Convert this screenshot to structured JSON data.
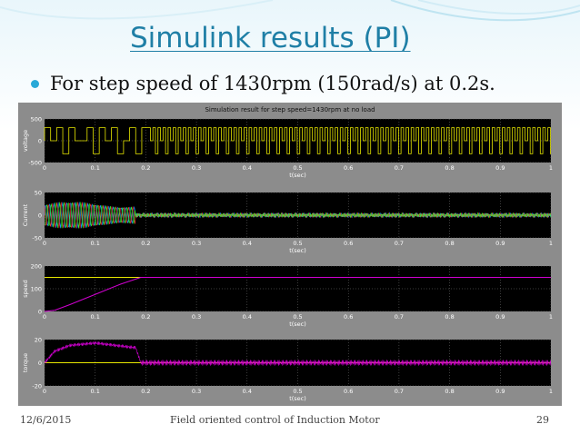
{
  "slide": {
    "title": "Simulink results (PI)",
    "bullet": "For step speed of 1430rpm (150rad/s) at 0.2s.",
    "footer_date": "12/6/2015",
    "footer_center": "Field oriented control of Induction Motor",
    "page_number": "29"
  },
  "colors": {
    "accent": "#1f7fa6",
    "bullet": "#29a9d8",
    "plot_bg": "#000000",
    "voltage_trace": "#e6e600",
    "speed_trace": "#d000d0",
    "torque_trace": "#d000d0",
    "reference_line": "#e6e600"
  },
  "figure": {
    "title": "Simulation result for step speed=1430rpm at no load"
  },
  "chart_data": [
    {
      "type": "line",
      "ylabel": "voltage",
      "xlabel": "t(sec)",
      "xlim": [
        0,
        1
      ],
      "ylim": [
        -500,
        500
      ],
      "yticks": [
        "500",
        "0",
        "-500"
      ],
      "xticks": [
        "0",
        "0.1",
        "0.2",
        "0.3",
        "0.4",
        "0.5",
        "0.6",
        "0.7",
        "0.8",
        "0.9",
        "1"
      ],
      "series": [
        {
          "kind": "pwm",
          "amplitude": 300
        }
      ],
      "grid": true
    },
    {
      "type": "line",
      "ylabel": "Current",
      "xlabel": "t(sec)",
      "xlim": [
        0,
        1
      ],
      "ylim": [
        -50,
        50
      ],
      "yticks": [
        "50",
        "0",
        "-50"
      ],
      "xticks": [
        "0",
        "0.1",
        "0.2",
        "0.3",
        "0.4",
        "0.5",
        "0.6",
        "0.7",
        "0.8",
        "0.9",
        "1"
      ],
      "series": [
        {
          "kind": "three_phase",
          "start_amplitude": 30,
          "settle_time": 0.18,
          "steady_amplitude": 4
        }
      ],
      "grid": true
    },
    {
      "type": "line",
      "ylabel": "speed",
      "xlabel": "t(sec)",
      "xlim": [
        0,
        1
      ],
      "ylim": [
        0,
        200
      ],
      "yticks": [
        "200",
        "100",
        "0"
      ],
      "xticks": [
        "0",
        "0.1",
        "0.2",
        "0.3",
        "0.4",
        "0.5",
        "0.6",
        "0.7",
        "0.8",
        "0.9",
        "1"
      ],
      "series": [
        {
          "kind": "reference",
          "x": [
            0,
            1
          ],
          "y": [
            150,
            150
          ]
        },
        {
          "kind": "response",
          "x": [
            0,
            0.02,
            0.05,
            0.1,
            0.15,
            0.19,
            0.2,
            1
          ],
          "y": [
            0,
            5,
            30,
            75,
            120,
            150,
            150,
            150
          ]
        }
      ],
      "grid": true
    },
    {
      "type": "line",
      "ylabel": "torque",
      "xlabel": "t(sec)",
      "xlim": [
        0,
        1
      ],
      "ylim": [
        -20,
        20
      ],
      "yticks": [
        "20",
        "0",
        "-20"
      ],
      "xticks": [
        "0",
        "0.1",
        "0.2",
        "0.3",
        "0.4",
        "0.5",
        "0.6",
        "0.7",
        "0.8",
        "0.9",
        "1"
      ],
      "series": [
        {
          "kind": "reference",
          "x": [
            0,
            1
          ],
          "y": [
            0,
            0
          ]
        },
        {
          "kind": "torque",
          "x": [
            0,
            0.02,
            0.05,
            0.1,
            0.18,
            0.19,
            1
          ],
          "y": [
            0,
            10,
            15,
            17,
            13,
            0,
            0
          ],
          "ripple": 2.5
        }
      ],
      "grid": true
    }
  ]
}
